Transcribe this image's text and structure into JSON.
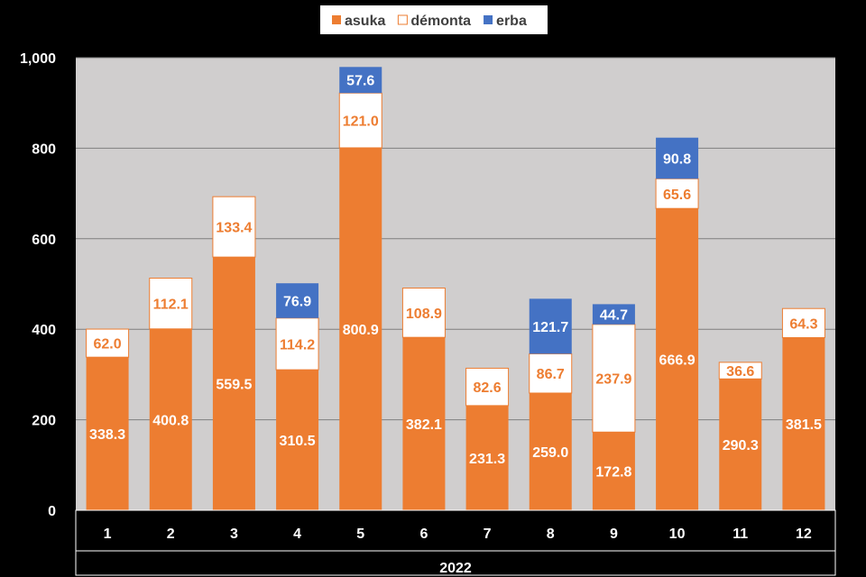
{
  "chart_data": {
    "type": "bar",
    "stacked": true,
    "categories": [
      "1",
      "2",
      "3",
      "4",
      "5",
      "6",
      "7",
      "8",
      "9",
      "10",
      "11",
      "12"
    ],
    "group_label": "2022",
    "series": [
      {
        "name": "asuka",
        "color": "#ED7D31",
        "label_color": "#FFFFFF",
        "values": [
          338.3,
          400.8,
          559.5,
          310.5,
          800.9,
          382.1,
          231.3,
          259.0,
          172.8,
          666.9,
          290.3,
          381.5
        ]
      },
      {
        "name": "démonta",
        "color": "#FFFFFF",
        "border_color": "#ED7D31",
        "label_color": "#ED7D31",
        "values": [
          62.0,
          112.1,
          133.4,
          114.2,
          121.0,
          108.9,
          82.6,
          86.7,
          237.9,
          65.6,
          36.6,
          64.3
        ]
      },
      {
        "name": "erba",
        "color": "#4472C4",
        "label_color": "#FFFFFF",
        "values": [
          null,
          null,
          null,
          76.9,
          57.6,
          null,
          null,
          121.7,
          44.7,
          90.8,
          null,
          null
        ]
      }
    ],
    "ylim": [
      0,
      1000
    ],
    "yticks": [
      "0",
      "200",
      "400",
      "600",
      "800",
      "1,000"
    ],
    "ytick_values": [
      0,
      200,
      400,
      600,
      800,
      1000
    ],
    "grid": true,
    "legend_position": "top-center",
    "plot_background": "#D0CECE",
    "grid_color": "#7F7F7F"
  }
}
